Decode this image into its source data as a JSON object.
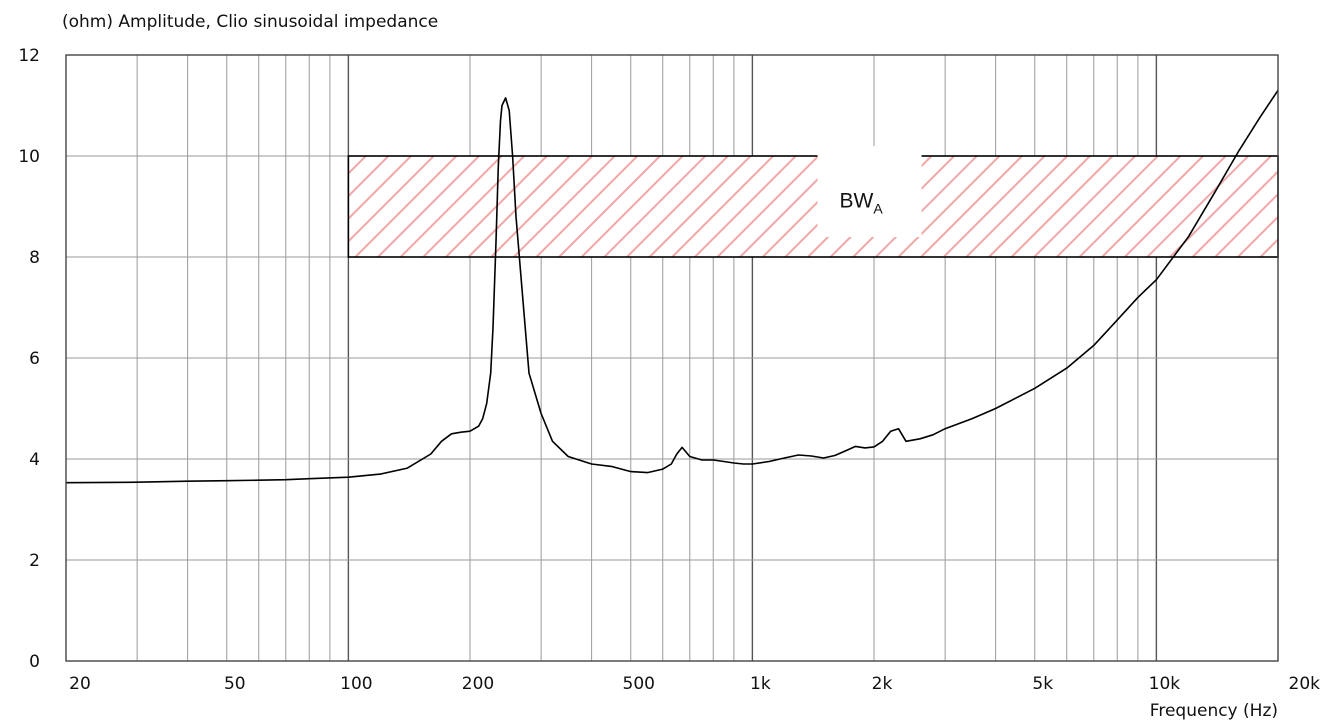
{
  "chart_data": {
    "type": "line",
    "title": "(ohm)  Amplitude, Clio sinusoidal impedance",
    "xlabel": "Frequency  (Hz)",
    "ylabel": "(ohm)",
    "x_scale": "log",
    "xlim": [
      20,
      20000
    ],
    "ylim": [
      0,
      12
    ],
    "grid": true,
    "x_ticks": [
      {
        "value": 20,
        "label": "20"
      },
      {
        "value": 50,
        "label": "50"
      },
      {
        "value": 100,
        "label": "100"
      },
      {
        "value": 200,
        "label": "200"
      },
      {
        "value": 500,
        "label": "500"
      },
      {
        "value": 1000,
        "label": "1k"
      },
      {
        "value": 2000,
        "label": "2k"
      },
      {
        "value": 5000,
        "label": "5k"
      },
      {
        "value": 10000,
        "label": "10k"
      },
      {
        "value": 20000,
        "label": "20k"
      }
    ],
    "y_ticks": [
      {
        "value": 0,
        "label": "0"
      },
      {
        "value": 2,
        "label": "2"
      },
      {
        "value": 4,
        "label": "4"
      },
      {
        "value": 6,
        "label": "6"
      },
      {
        "value": 8,
        "label": "8"
      },
      {
        "value": 10,
        "label": "10"
      },
      {
        "value": 12,
        "label": "12"
      }
    ],
    "series": [
      {
        "color": "#000000",
        "x": [
          20,
          30,
          40,
          50,
          60,
          70,
          80,
          100,
          120,
          140,
          160,
          170,
          180,
          190,
          200,
          210,
          215,
          220,
          225,
          228,
          232,
          235,
          238,
          240,
          245,
          250,
          255,
          260,
          270,
          280,
          300,
          320,
          350,
          400,
          450,
          500,
          550,
          600,
          630,
          650,
          670,
          700,
          750,
          800,
          850,
          900,
          950,
          1000,
          1100,
          1200,
          1300,
          1400,
          1500,
          1600,
          1700,
          1800,
          1900,
          2000,
          2100,
          2200,
          2300,
          2400,
          2600,
          2800,
          3000,
          3500,
          4000,
          5000,
          6000,
          7000,
          8000,
          9000,
          10000,
          12000,
          14000,
          16000,
          18000,
          20000
        ],
        "y": [
          3.53,
          3.54,
          3.56,
          3.57,
          3.58,
          3.59,
          3.61,
          3.64,
          3.7,
          3.82,
          4.1,
          4.35,
          4.5,
          4.53,
          4.55,
          4.65,
          4.8,
          5.1,
          5.7,
          6.6,
          8.3,
          9.8,
          10.7,
          11.0,
          11.15,
          10.9,
          10.0,
          8.8,
          7.2,
          5.7,
          4.9,
          4.35,
          4.05,
          3.9,
          3.85,
          3.75,
          3.73,
          3.8,
          3.9,
          4.1,
          4.23,
          4.05,
          3.98,
          3.98,
          3.95,
          3.92,
          3.9,
          3.9,
          3.95,
          4.02,
          4.08,
          4.06,
          4.02,
          4.07,
          4.16,
          4.25,
          4.22,
          4.24,
          4.35,
          4.55,
          4.6,
          4.35,
          4.4,
          4.48,
          4.6,
          4.8,
          5.0,
          5.4,
          5.8,
          6.25,
          6.75,
          7.2,
          7.55,
          8.4,
          9.3,
          10.1,
          10.75,
          11.3
        ]
      }
    ],
    "band": {
      "x_start": 100,
      "x_end": 20000,
      "y_low": 8,
      "y_high": 10,
      "label_main": "BW",
      "label_sub": "A",
      "label_x": 1950,
      "hatch_color": "#f2a6a6",
      "border_color": "#000000"
    }
  }
}
